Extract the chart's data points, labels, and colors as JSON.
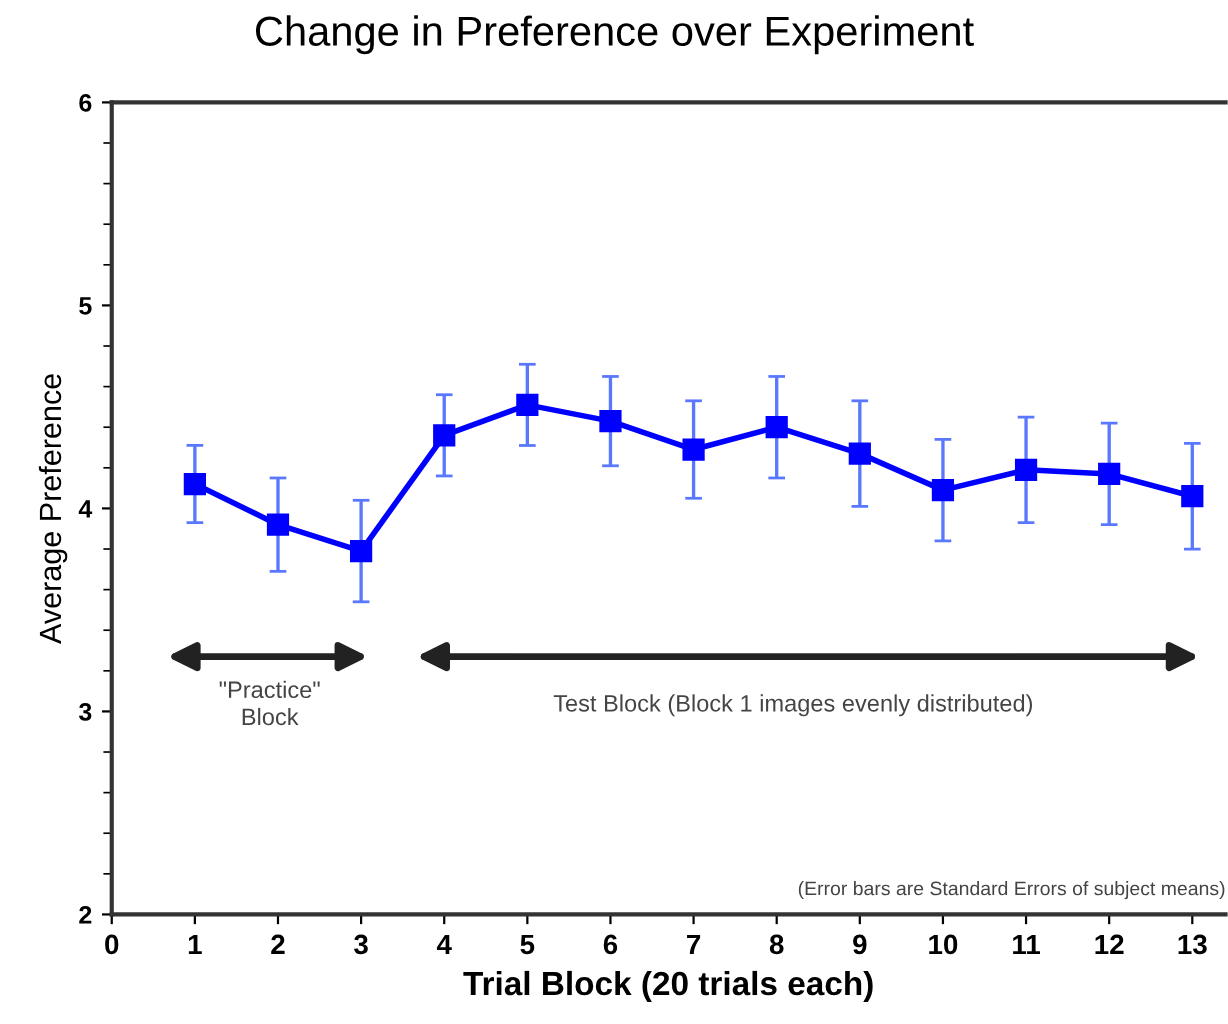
{
  "chart_data": {
    "type": "line",
    "title": "Change in Preference over Experiment",
    "xlabel": "Trial Block (20 trials each)",
    "ylabel": "Average Preference",
    "x": [
      1,
      2,
      3,
      4,
      5,
      6,
      7,
      8,
      9,
      10,
      11,
      12,
      13
    ],
    "series": [
      {
        "color": "#0000ff",
        "values": [
          4.12,
          3.92,
          3.79,
          4.36,
          4.51,
          4.43,
          4.29,
          4.4,
          4.27,
          4.09,
          4.19,
          4.17,
          4.06
        ],
        "errors": [
          0.19,
          0.23,
          0.25,
          0.2,
          0.2,
          0.22,
          0.24,
          0.25,
          0.26,
          0.25,
          0.26,
          0.25,
          0.26
        ]
      }
    ],
    "xlim": [
      0,
      13.4
    ],
    "xticks": [
      0,
      1,
      2,
      3,
      4,
      5,
      6,
      7,
      8,
      9,
      10,
      11,
      12,
      13
    ],
    "ylim": [
      2,
      6
    ],
    "yticks": [
      2,
      3,
      4,
      5,
      6
    ],
    "marker": "square",
    "line_style": "solid",
    "grid": false,
    "legend": false,
    "annotations": [
      "\"Practice\"\nBlock",
      "Test Block (Block 1 images evenly distributed)",
      "(Error bars are Standard Errors of subject means)"
    ]
  }
}
